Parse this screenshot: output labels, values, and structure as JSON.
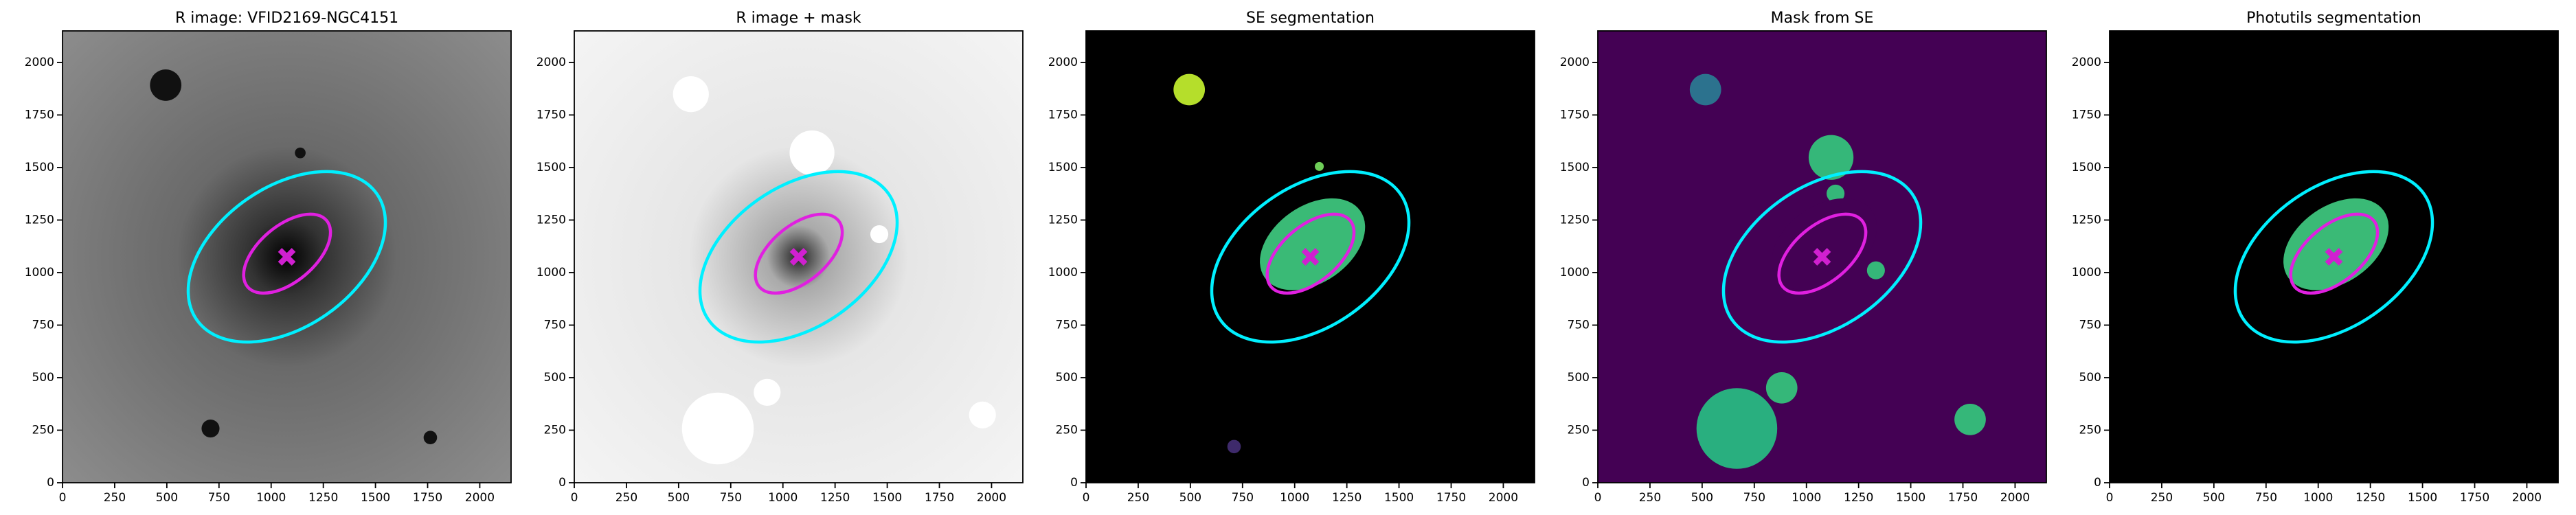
{
  "chart_data": [
    {
      "type": "image",
      "title": "R image: VFID2169-NGC4151",
      "xlim": [
        0,
        2150
      ],
      "ylim": [
        0,
        2150
      ],
      "xticks": [
        0,
        250,
        500,
        750,
        1000,
        1250,
        1500,
        1750,
        2000
      ],
      "yticks": [
        0,
        250,
        500,
        750,
        1000,
        1250,
        1500,
        1750,
        2000
      ]
    },
    {
      "type": "image",
      "title": "R image + mask",
      "xlim": [
        0,
        2150
      ],
      "ylim": [
        0,
        2150
      ],
      "xticks": [
        0,
        250,
        500,
        750,
        1000,
        1250,
        1500,
        1750,
        2000
      ],
      "yticks": [
        0,
        250,
        500,
        750,
        1000,
        1250,
        1500,
        1750,
        2000
      ]
    },
    {
      "type": "image",
      "title": "SE segmentation",
      "xlim": [
        0,
        2150
      ],
      "ylim": [
        0,
        2150
      ],
      "xticks": [
        0,
        250,
        500,
        750,
        1000,
        1250,
        1500,
        1750,
        2000
      ],
      "yticks": [
        0,
        250,
        500,
        750,
        1000,
        1250,
        1500,
        1750,
        2000
      ]
    },
    {
      "type": "image",
      "title": "Mask from SE",
      "xlim": [
        0,
        2150
      ],
      "ylim": [
        0,
        2150
      ],
      "xticks": [
        0,
        250,
        500,
        750,
        1000,
        1250,
        1500,
        1750,
        2000
      ],
      "yticks": [
        0,
        250,
        500,
        750,
        1000,
        1250,
        1500,
        1750,
        2000
      ]
    },
    {
      "type": "image",
      "title": "Photutils segmentation",
      "xlim": [
        0,
        2150
      ],
      "ylim": [
        0,
        2150
      ],
      "xticks": [
        0,
        250,
        500,
        750,
        1000,
        1250,
        1500,
        1750,
        2000
      ],
      "yticks": [
        0,
        250,
        500,
        750,
        1000,
        1250,
        1500,
        1750,
        2000
      ]
    }
  ]
}
